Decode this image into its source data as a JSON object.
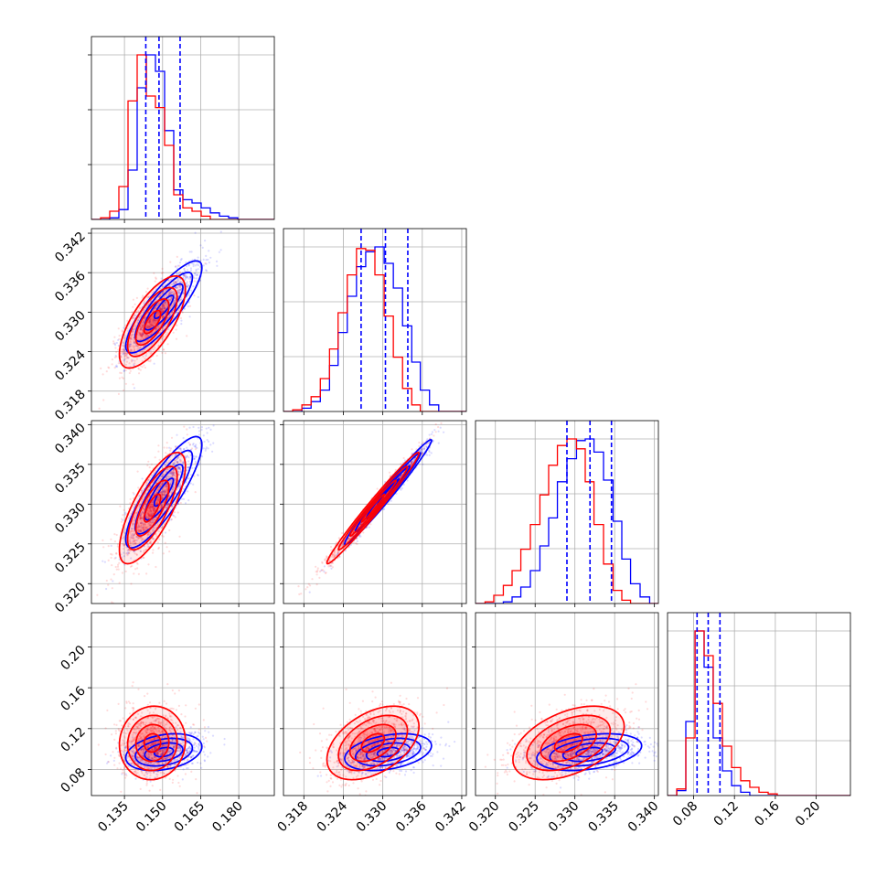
{
  "figure": {
    "kind": "corner-plot",
    "n_params": 4
  },
  "colors": {
    "blue": "#0000ff",
    "red": "#ff0000",
    "grid": "#b0b0b0",
    "axis": "#000000"
  },
  "chart_data": [
    {
      "type": "histogram",
      "param_index": 0,
      "xlim": [
        0.122,
        0.194
      ],
      "x_edges": [
        0.122,
        0.1256,
        0.1292,
        0.1328,
        0.1364,
        0.14,
        0.1436,
        0.1472,
        0.1508,
        0.1544,
        0.158,
        0.1616,
        0.1652,
        0.1688,
        0.1724,
        0.176,
        0.1796,
        0.1832,
        0.1868,
        0.1904,
        0.194
      ],
      "series": [
        {
          "color": "blue",
          "values": [
            0.0,
            0.0,
            0.01,
            0.06,
            0.3,
            0.8,
            1.0,
            0.9,
            0.54,
            0.18,
            0.12,
            0.1,
            0.07,
            0.04,
            0.02,
            0.01,
            0.0,
            0.0,
            0.0,
            0.0
          ]
        },
        {
          "color": "red",
          "values": [
            0.0,
            0.01,
            0.05,
            0.2,
            0.72,
            1.0,
            0.75,
            0.68,
            0.45,
            0.15,
            0.07,
            0.05,
            0.02,
            0.0,
            0.0,
            0.0,
            0.0,
            0.0,
            0.0,
            0.0
          ]
        }
      ],
      "quantile_lines": [
        0.1434,
        0.1486,
        0.1569
      ],
      "grid": true
    },
    {
      "type": "histogram",
      "param_index": 1,
      "xlim": [
        0.3149,
        0.3427
      ],
      "x_edges": [
        0.3149,
        0.3163,
        0.3177,
        0.3191,
        0.3205,
        0.3219,
        0.3232,
        0.3246,
        0.326,
        0.3274,
        0.3288,
        0.3302,
        0.3316,
        0.333,
        0.3344,
        0.3357,
        0.3371,
        0.3385,
        0.3399,
        0.3413,
        0.3427
      ],
      "series": [
        {
          "color": "blue",
          "values": [
            0.0,
            0.0,
            0.02,
            0.06,
            0.13,
            0.28,
            0.48,
            0.7,
            0.88,
            0.97,
            1.0,
            0.9,
            0.75,
            0.52,
            0.3,
            0.13,
            0.04,
            0.0,
            0.0,
            0.0
          ]
        },
        {
          "color": "red",
          "values": [
            0.0,
            0.01,
            0.04,
            0.09,
            0.2,
            0.38,
            0.6,
            0.83,
            0.99,
            0.98,
            0.83,
            0.58,
            0.33,
            0.14,
            0.04,
            0.0,
            0.0,
            0.0,
            0.0,
            0.0
          ]
        }
      ],
      "quantile_lines": [
        0.3267,
        0.3304,
        0.3338
      ],
      "grid": true
    },
    {
      "type": "histogram",
      "param_index": 2,
      "xlim": [
        0.3175,
        0.3405
      ],
      "x_edges": [
        0.3175,
        0.3187,
        0.3198,
        0.321,
        0.3221,
        0.3232,
        0.3244,
        0.3256,
        0.3267,
        0.3278,
        0.329,
        0.3302,
        0.3313,
        0.3324,
        0.3336,
        0.3348,
        0.3359,
        0.337,
        0.3382,
        0.3394,
        0.3405
      ],
      "series": [
        {
          "color": "blue",
          "values": [
            0.0,
            0.0,
            0.0,
            0.01,
            0.04,
            0.1,
            0.2,
            0.35,
            0.52,
            0.74,
            0.88,
            0.99,
            1.0,
            0.92,
            0.75,
            0.5,
            0.27,
            0.12,
            0.04,
            0.0
          ]
        },
        {
          "color": "red",
          "values": [
            0.0,
            0.01,
            0.05,
            0.11,
            0.2,
            0.33,
            0.48,
            0.66,
            0.84,
            0.96,
            1.0,
            0.94,
            0.74,
            0.48,
            0.24,
            0.08,
            0.02,
            0.0,
            0.0,
            0.0
          ]
        }
      ],
      "quantile_lines": [
        0.329,
        0.3319,
        0.3346
      ],
      "grid": true
    },
    {
      "type": "histogram",
      "param_index": 3,
      "xlim": [
        0.0545,
        0.2335
      ],
      "x_edges": [
        0.0545,
        0.0635,
        0.0724,
        0.0814,
        0.0903,
        0.0992,
        0.1082,
        0.1172,
        0.1261,
        0.135,
        0.144,
        0.153,
        0.1619,
        0.1708,
        0.1798,
        0.1888,
        0.1977,
        0.2066,
        0.2156,
        0.2246,
        0.2335
      ],
      "series": [
        {
          "color": "blue",
          "values": [
            0.0,
            0.03,
            0.45,
            1.0,
            0.78,
            0.35,
            0.15,
            0.06,
            0.02,
            0.0,
            0.0,
            0.0,
            0.0,
            0.0,
            0.0,
            0.0,
            0.0,
            0.0,
            0.0,
            0.0
          ]
        },
        {
          "color": "red",
          "values": [
            0.0,
            0.04,
            0.35,
            1.0,
            0.85,
            0.56,
            0.3,
            0.17,
            0.09,
            0.05,
            0.02,
            0.01,
            0.0,
            0.0,
            0.0,
            0.0,
            0.0,
            0.0,
            0.0,
            0.0
          ]
        }
      ],
      "quantile_lines": [
        0.0834,
        0.0943,
        0.1058
      ],
      "grid": true
    },
    {
      "type": "scatter",
      "param_x": 0,
      "param_y": 1,
      "xlim": [
        0.122,
        0.194
      ],
      "ylim": [
        0.3149,
        0.3427
      ],
      "series": [
        {
          "color": "blue",
          "center": [
            0.1505,
            0.3308
          ],
          "std": [
            0.0075,
            0.0035
          ],
          "rho": 0.85
        },
        {
          "color": "red",
          "center": [
            0.146,
            0.3285
          ],
          "std": [
            0.0065,
            0.0035
          ],
          "rho": 0.7
        }
      ],
      "contour_levels": [
        0.5,
        1.0,
        1.5,
        2.0
      ],
      "grid": true
    },
    {
      "type": "scatter",
      "param_x": 0,
      "param_y": 2,
      "xlim": [
        0.122,
        0.194
      ],
      "ylim": [
        0.3175,
        0.3405
      ],
      "series": [
        {
          "color": "blue",
          "center": [
            0.1505,
            0.3315
          ],
          "std": [
            0.0075,
            0.0035
          ],
          "rho": 0.85
        },
        {
          "color": "red",
          "center": [
            0.146,
            0.3295
          ],
          "std": [
            0.0065,
            0.0035
          ],
          "rho": 0.75
        }
      ],
      "contour_levels": [
        0.5,
        1.0,
        1.5,
        2.0
      ],
      "grid": true
    },
    {
      "type": "scatter",
      "param_x": 1,
      "param_y": 2,
      "xlim": [
        0.3149,
        0.3427
      ],
      "ylim": [
        0.3175,
        0.3405
      ],
      "series": [
        {
          "color": "blue",
          "center": [
            0.3308,
            0.3315
          ],
          "std": [
            0.0033,
            0.0033
          ],
          "rho": 0.985
        },
        {
          "color": "red",
          "center": [
            0.3285,
            0.3295
          ],
          "std": [
            0.0035,
            0.0035
          ],
          "rho": 0.985
        }
      ],
      "contour_levels": [
        0.5,
        1.0,
        1.5,
        2.0
      ],
      "grid": true
    },
    {
      "type": "scatter",
      "param_x": 0,
      "param_y": 3,
      "xlim": [
        0.122,
        0.194
      ],
      "ylim": [
        0.0545,
        0.2335
      ],
      "series": [
        {
          "color": "blue",
          "center": [
            0.1505,
            0.097
          ],
          "std": [
            0.0075,
            0.009
          ],
          "rho": 0.3
        },
        {
          "color": "red",
          "center": [
            0.146,
            0.106
          ],
          "std": [
            0.0065,
            0.018
          ],
          "rho": 0.05
        }
      ],
      "contour_levels": [
        0.5,
        1.0,
        1.5,
        2.0
      ],
      "grid": true
    },
    {
      "type": "scatter",
      "param_x": 1,
      "param_y": 3,
      "xlim": [
        0.3149,
        0.3427
      ],
      "ylim": [
        0.0545,
        0.2335
      ],
      "series": [
        {
          "color": "blue",
          "center": [
            0.3308,
            0.097
          ],
          "std": [
            0.0033,
            0.009
          ],
          "rho": 0.35
        },
        {
          "color": "red",
          "center": [
            0.3285,
            0.106
          ],
          "std": [
            0.0035,
            0.018
          ],
          "rho": 0.45
        }
      ],
      "contour_levels": [
        0.5,
        1.0,
        1.5,
        2.0
      ],
      "grid": true
    },
    {
      "type": "scatter",
      "param_x": 2,
      "param_y": 3,
      "xlim": [
        0.3175,
        0.3405
      ],
      "ylim": [
        0.0545,
        0.2335
      ],
      "series": [
        {
          "color": "blue",
          "center": [
            0.3318,
            0.097
          ],
          "std": [
            0.0033,
            0.009
          ],
          "rho": 0.35
        },
        {
          "color": "red",
          "center": [
            0.3292,
            0.106
          ],
          "std": [
            0.0035,
            0.018
          ],
          "rho": 0.45
        }
      ],
      "contour_levels": [
        0.5,
        1.0,
        1.5,
        2.0
      ],
      "grid": true
    }
  ],
  "axes": {
    "x_ticks": [
      [
        "0.135",
        "0.150",
        "0.165",
        "0.180"
      ],
      [
        "0.318",
        "0.324",
        "0.330",
        "0.336",
        "0.342"
      ],
      [
        "0.320",
        "0.325",
        "0.330",
        "0.335",
        "0.340"
      ],
      [
        "0.08",
        "0.12",
        "0.16",
        "0.20"
      ]
    ],
    "y_ticks": {
      "row1": [
        "0.318",
        "0.324",
        "0.330",
        "0.336",
        "0.342"
      ],
      "row2": [
        "0.320",
        "0.325",
        "0.330",
        "0.335",
        "0.340"
      ],
      "row3": [
        "0.08",
        "0.12",
        "0.16",
        "0.20"
      ]
    },
    "x_tick_values": [
      [
        0.135,
        0.15,
        0.165,
        0.18
      ],
      [
        0.318,
        0.324,
        0.33,
        0.336,
        0.342
      ],
      [
        0.32,
        0.325,
        0.33,
        0.335,
        0.34
      ],
      [
        0.08,
        0.12,
        0.16,
        0.2
      ]
    ],
    "y_tick_values": {
      "row1": [
        0.318,
        0.324,
        0.33,
        0.336,
        0.342
      ],
      "row2": [
        0.32,
        0.325,
        0.33,
        0.335,
        0.34
      ],
      "row3": [
        0.08,
        0.12,
        0.16,
        0.2
      ]
    }
  }
}
